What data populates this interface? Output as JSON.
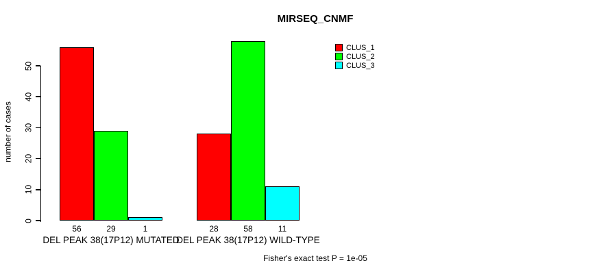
{
  "title": "MIRSEQ_CNMF",
  "footer": "Fisher's exact test P = 1e-05",
  "y_axis": {
    "label": "number of cases",
    "ticks": [
      0,
      10,
      20,
      30,
      40,
      50
    ]
  },
  "legend": [
    {
      "label": "CLUS_1",
      "color": "#FF0000"
    },
    {
      "label": "CLUS_2",
      "color": "#00FF00"
    },
    {
      "label": "CLUS_3",
      "color": "#00FFFF"
    }
  ],
  "chart_data": {
    "type": "bar",
    "title": "MIRSEQ_CNMF",
    "xlabel": "",
    "ylabel": "number of cases",
    "ylim": [
      0,
      58
    ],
    "y_ticks": [
      0,
      10,
      20,
      30,
      40,
      50
    ],
    "grid": false,
    "legend_position": "top-right",
    "categories": [
      "DEL PEAK 38(17P12) MUTATED",
      "DEL PEAK 38(17P12) WILD-TYPE"
    ],
    "series": [
      {
        "name": "CLUS_1",
        "color": "#FF0000",
        "values": [
          56,
          28
        ]
      },
      {
        "name": "CLUS_2",
        "color": "#00FF00",
        "values": [
          29,
          58
        ]
      },
      {
        "name": "CLUS_3",
        "color": "#00FFFF",
        "values": [
          1,
          11
        ]
      }
    ],
    "bar_value_labels": [
      [
        56,
        29,
        1
      ],
      [
        28,
        58,
        11
      ]
    ],
    "annotation": "Fisher's exact test P = 1e-05"
  }
}
